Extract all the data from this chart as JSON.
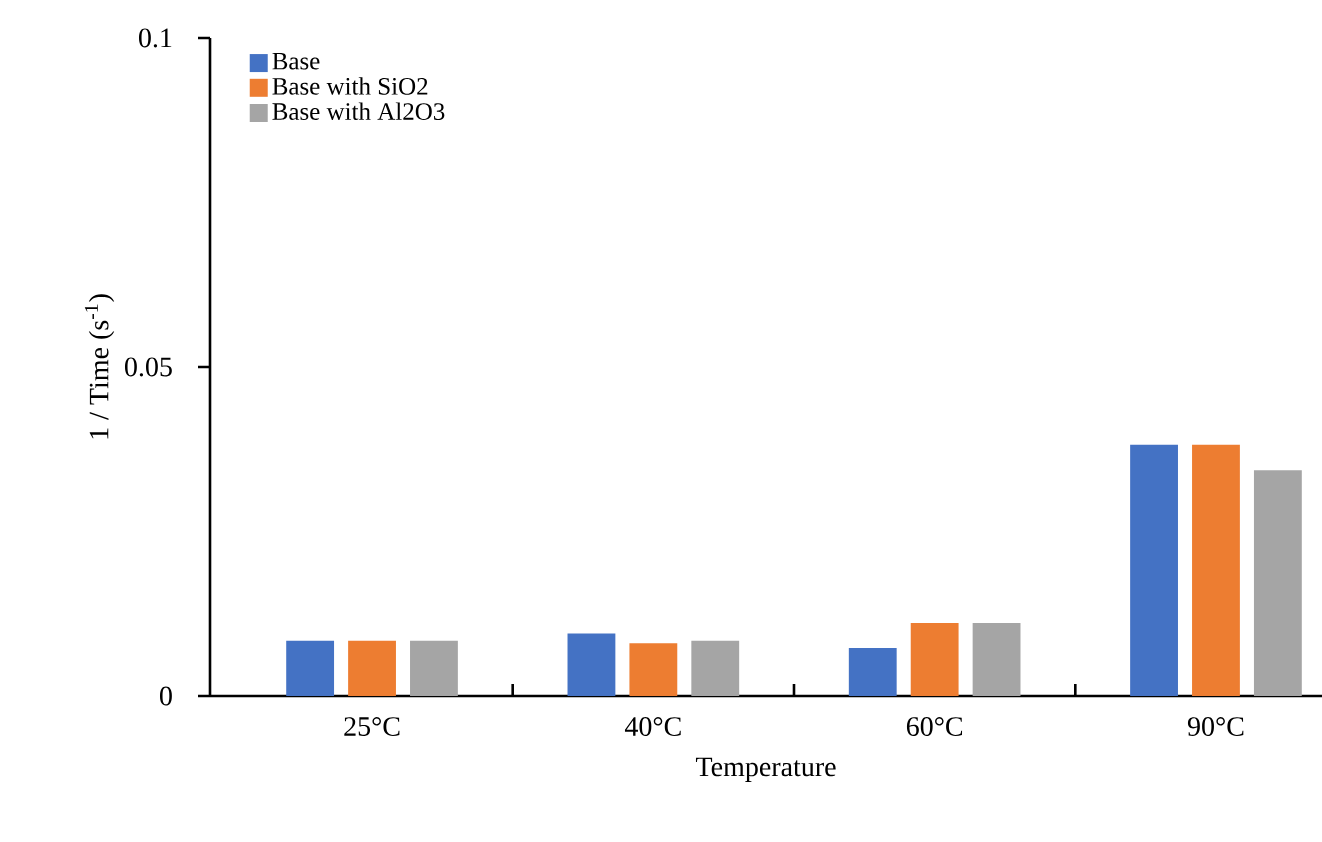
{
  "chart_data": {
    "type": "bar",
    "xlabel": "Temperature",
    "ylabel": "1 / Time (s$^{-1}$)",
    "categories": [
      "25°C",
      "40°C",
      "60°C",
      "90°C"
    ],
    "series": [
      {
        "name": "Base",
        "color": "#4472c4",
        "values": [
          0.0084,
          0.0095,
          0.0073,
          0.0382
        ]
      },
      {
        "name": "Base with SiO2",
        "color": "#ed7d31",
        "values": [
          0.0084,
          0.008,
          0.0111,
          0.0382
        ]
      },
      {
        "name": "Base with Al2O3",
        "color": "#a5a5a5",
        "values": [
          0.0084,
          0.0084,
          0.0111,
          0.0343
        ]
      }
    ],
    "ylim": [
      0,
      0.1
    ],
    "yticks": [
      0,
      0.05,
      0.1
    ],
    "legend": "top left"
  }
}
